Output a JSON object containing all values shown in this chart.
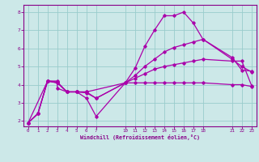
{
  "title": "",
  "xlabel": "Windchill (Refroidissement éolien,°C)",
  "ylabel": "",
  "bg_color": "#cce8e8",
  "grid_color": "#99cccc",
  "line_color": "#aa00aa",
  "xlim": [
    -0.5,
    23.5
  ],
  "ylim": [
    1.7,
    8.4
  ],
  "xticks": [
    0,
    1,
    2,
    3,
    4,
    5,
    6,
    7,
    10,
    11,
    12,
    13,
    14,
    15,
    16,
    17,
    18,
    21,
    22,
    23
  ],
  "yticks": [
    2,
    3,
    4,
    5,
    6,
    7,
    8
  ],
  "series": [
    {
      "x": [
        0,
        1,
        2,
        3,
        3,
        4,
        5,
        6,
        7,
        10,
        11,
        12,
        13,
        14,
        15,
        16,
        17,
        18,
        21,
        22,
        23
      ],
      "y": [
        1.9,
        2.4,
        4.2,
        4.2,
        3.8,
        3.6,
        3.6,
        3.25,
        2.25,
        4.1,
        4.9,
        6.1,
        7.0,
        7.8,
        7.8,
        8.0,
        7.4,
        6.5,
        5.5,
        4.8,
        4.75
      ]
    },
    {
      "x": [
        0,
        1,
        2,
        3,
        4,
        5,
        6,
        7,
        10,
        11,
        12,
        13,
        14,
        15,
        16,
        17,
        18,
        21,
        22,
        23
      ],
      "y": [
        1.9,
        2.4,
        4.2,
        4.15,
        3.6,
        3.6,
        3.6,
        3.25,
        4.1,
        4.5,
        5.0,
        5.4,
        5.8,
        6.05,
        6.2,
        6.35,
        6.5,
        5.4,
        5.0,
        4.7
      ]
    },
    {
      "x": [
        0,
        1,
        2,
        3,
        4,
        5,
        6,
        10,
        11,
        12,
        13,
        14,
        15,
        16,
        17,
        18,
        21,
        22,
        23
      ],
      "y": [
        1.9,
        2.4,
        4.2,
        4.1,
        3.6,
        3.6,
        3.6,
        4.1,
        4.35,
        4.6,
        4.85,
        5.0,
        5.1,
        5.2,
        5.3,
        5.4,
        5.3,
        5.3,
        3.95
      ]
    },
    {
      "x": [
        0,
        2,
        3,
        4,
        5,
        6,
        7,
        10,
        11,
        12,
        13,
        14,
        15,
        16,
        17,
        18,
        21,
        22,
        23
      ],
      "y": [
        1.9,
        4.2,
        4.1,
        3.6,
        3.6,
        3.55,
        3.25,
        4.1,
        4.1,
        4.1,
        4.1,
        4.1,
        4.1,
        4.1,
        4.1,
        4.1,
        4.0,
        4.0,
        3.9
      ]
    }
  ]
}
